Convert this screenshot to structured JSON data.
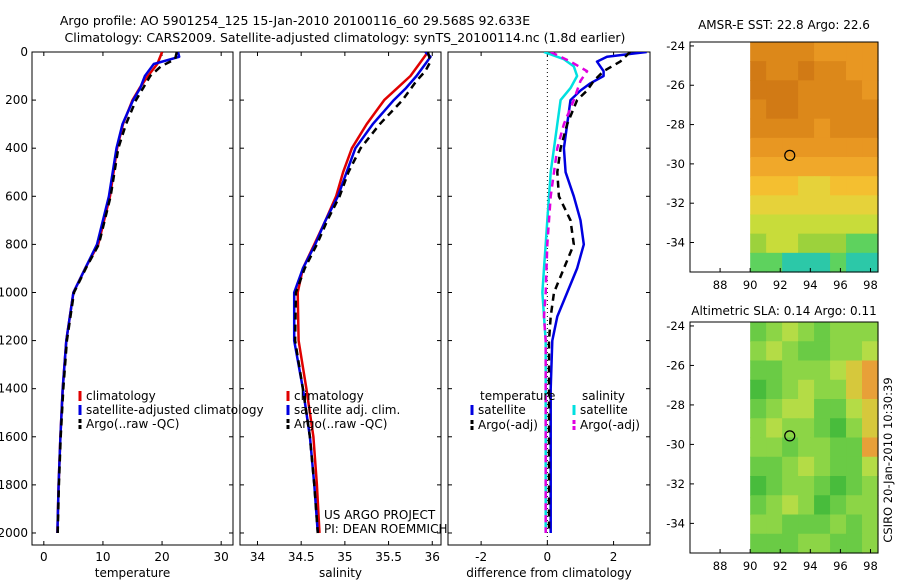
{
  "title": {
    "line1": "Argo profile: AO 5901254_125 15-Jan-2010 20100116_60 29.568S 92.633E",
    "line2": "Climatology: CARS2009. Satellite-adjusted climatology: synTS_20100114.nc (1.8d earlier)"
  },
  "colors": {
    "climatology": "#e00000",
    "satellite": "#0000e0",
    "argo": "#000000",
    "salinity_satellite": "#00e0e0",
    "salinity_argo": "#e000e0"
  },
  "credits": {
    "project": "US ARGO PROJECT",
    "pi": "PI: DEAN ROEMMICH",
    "timestamp": "CSIRO 20-Jan-2010 10:30:39"
  },
  "chart_data": [
    {
      "id": "temperature",
      "type": "line",
      "xlabel": "temperature",
      "xlim": [
        -2,
        32
      ],
      "xticks": [
        "0",
        "10",
        "20",
        "30"
      ],
      "xtick_values": [
        0,
        10,
        20,
        30
      ],
      "ylim": [
        0,
        2050
      ],
      "yticks": [
        "0",
        "200",
        "400",
        "600",
        "800",
        "1000",
        "1200",
        "1400",
        "1600",
        "1800",
        "2000"
      ],
      "ytick_values": [
        0,
        200,
        400,
        600,
        800,
        1000,
        1200,
        1400,
        1600,
        1800,
        2000
      ],
      "legend": [
        "climatology",
        "satellite-adjusted climatology",
        "Argo(..raw -QC)"
      ],
      "series": [
        {
          "name": "climatology",
          "style": "climatology",
          "depth": [
            0,
            50,
            100,
            150,
            200,
            300,
            400,
            600,
            800,
            900,
            1000,
            1200,
            1400,
            1600,
            1800,
            2000
          ],
          "values": [
            20,
            19.2,
            17.6,
            16.2,
            15.0,
            13.4,
            12.4,
            11.2,
            9.2,
            7.0,
            5.0,
            3.8,
            3.2,
            2.8,
            2.5,
            2.3
          ]
        },
        {
          "name": "satellite-adjusted climatology",
          "style": "satellite",
          "depth": [
            0,
            20,
            50,
            100,
            150,
            200,
            300,
            400,
            600,
            800,
            900,
            1000,
            1200,
            1400,
            1600,
            1800,
            2000
          ],
          "values": [
            22.7,
            22.9,
            18.6,
            17.1,
            16.3,
            15.1,
            13.3,
            12.3,
            11.0,
            9.0,
            7.0,
            5.0,
            3.8,
            3.2,
            2.8,
            2.5,
            2.3
          ]
        },
        {
          "name": "Argo(..raw -QC)",
          "style": "argo",
          "depth": [
            0,
            30,
            60,
            100,
            150,
            200,
            300,
            400,
            600,
            800,
            900,
            1000,
            1200,
            1400,
            1600,
            1800,
            2000
          ],
          "values": [
            22.5,
            22.2,
            19.8,
            18.0,
            16.8,
            15.6,
            13.9,
            12.6,
            11.3,
            9.3,
            7.1,
            5.1,
            3.9,
            3.3,
            2.85,
            2.55,
            2.35
          ]
        }
      ]
    },
    {
      "id": "salinity",
      "type": "line",
      "xlabel": "salinity",
      "xlim": [
        33.8,
        36.1
      ],
      "xticks": [
        "34",
        "34.5",
        "35",
        "35.5",
        "36"
      ],
      "xtick_values": [
        34,
        34.5,
        35,
        35.5,
        36
      ],
      "ylim": [
        0,
        2050
      ],
      "legend": [
        "climatology",
        "satellite adj. clim.",
        "Argo(..raw -QC)"
      ],
      "series": [
        {
          "name": "climatology",
          "style": "climatology",
          "depth": [
            0,
            50,
            100,
            150,
            200,
            300,
            400,
            500,
            600,
            700,
            800,
            900,
            1000,
            1200,
            1400,
            1600,
            1800,
            2000
          ],
          "values": [
            35.95,
            35.85,
            35.75,
            35.6,
            35.45,
            35.25,
            35.08,
            34.98,
            34.9,
            34.78,
            34.65,
            34.52,
            34.46,
            34.47,
            34.56,
            34.64,
            34.68,
            34.71
          ]
        },
        {
          "name": "satellite adj. clim.",
          "style": "satellite",
          "depth": [
            0,
            20,
            50,
            100,
            150,
            200,
            300,
            400,
            500,
            600,
            700,
            800,
            900,
            1000,
            1200,
            1400,
            1600,
            1800,
            2000
          ],
          "values": [
            35.92,
            35.98,
            35.92,
            35.82,
            35.7,
            35.56,
            35.32,
            35.12,
            35.02,
            34.92,
            34.78,
            34.66,
            34.52,
            34.42,
            34.42,
            34.52,
            34.6,
            34.65,
            34.69
          ]
        },
        {
          "name": "Argo(..raw -QC)",
          "style": "argo",
          "depth": [
            0,
            40,
            80,
            120,
            200,
            300,
            400,
            500,
            600,
            700,
            800,
            900,
            1000,
            1200,
            1400,
            1600,
            1800,
            2000
          ],
          "values": [
            35.95,
            35.98,
            35.92,
            35.82,
            35.66,
            35.4,
            35.18,
            35.04,
            34.94,
            34.8,
            34.68,
            34.54,
            34.44,
            34.43,
            34.52,
            34.6,
            34.65,
            34.69
          ]
        }
      ],
      "annotations": [
        "US ARGO PROJECT",
        "PI: DEAN ROEMMICH"
      ]
    },
    {
      "id": "difference",
      "type": "line",
      "xlabel": "difference from climatology",
      "xlim": [
        -3,
        3.1
      ],
      "xticks": [
        "-2",
        "0",
        "2"
      ],
      "xtick_values": [
        -2,
        0,
        2
      ],
      "ylim": [
        0,
        2050
      ],
      "legend_groups": [
        {
          "title": "temperature",
          "items": [
            "satellite",
            "Argo(-adj)"
          ]
        },
        {
          "title": "salinity",
          "items": [
            "satellite",
            "Argo(-adj)"
          ]
        }
      ],
      "series": [
        {
          "name": "temperature satellite",
          "style": "satellite",
          "depth": [
            0,
            20,
            40,
            60,
            80,
            100,
            130,
            160,
            200,
            300,
            400,
            500,
            600,
            700,
            800,
            900,
            1000,
            1100,
            1200,
            1400,
            1600,
            1800,
            2000
          ],
          "values": [
            3.0,
            1.8,
            1.5,
            1.6,
            1.7,
            1.7,
            1.3,
            1.0,
            0.7,
            0.6,
            0.5,
            0.55,
            0.8,
            1.0,
            1.1,
            0.9,
            0.6,
            0.3,
            0.15,
            0.1,
            0.1,
            0.1,
            0.1
          ]
        },
        {
          "name": "temperature Argo(-adj)",
          "style": "argo",
          "depth": [
            0,
            40,
            80,
            120,
            160,
            200,
            300,
            400,
            500,
            600,
            700,
            800,
            900,
            1000,
            1100,
            1200,
            1400,
            1600,
            1800,
            2000
          ],
          "values": [
            2.5,
            2.2,
            1.7,
            1.4,
            1.2,
            0.9,
            0.6,
            0.4,
            0.3,
            0.35,
            0.7,
            0.8,
            0.5,
            0.2,
            0.1,
            0.05,
            0.05,
            0.05,
            0.05,
            0.05
          ]
        },
        {
          "name": "salinity satellite",
          "style": "salinity_satellite",
          "depth": [
            0,
            30,
            60,
            100,
            150,
            200,
            300,
            400,
            500,
            600,
            700,
            800,
            900,
            1000,
            1100,
            1200,
            1400,
            1600,
            1800,
            2000
          ],
          "values": [
            -0.1,
            0.5,
            0.8,
            0.9,
            0.7,
            0.4,
            0.3,
            0.2,
            0.1,
            0.05,
            0.0,
            -0.05,
            -0.1,
            -0.15,
            -0.1,
            -0.05,
            -0.05,
            -0.05,
            -0.05,
            -0.05
          ]
        },
        {
          "name": "salinity Argo(-adj)",
          "style": "salinity_argo",
          "depth": [
            0,
            40,
            80,
            120,
            200,
            300,
            400,
            600,
            800,
            1000,
            1100,
            1200,
            1400,
            1600,
            1800,
            2000
          ],
          "values": [
            0.1,
            0.7,
            1.2,
            1.0,
            0.8,
            0.5,
            0.3,
            0.1,
            0.0,
            -0.05,
            -0.1,
            -0.05,
            -0.05,
            -0.05,
            -0.05,
            -0.05
          ]
        }
      ]
    },
    {
      "id": "sst_map",
      "type": "heatmap",
      "title": "AMSR-E SST: 22.8 Argo: 22.6",
      "xlim": [
        86,
        98.5
      ],
      "ylim": [
        -35.5,
        -23.8
      ],
      "xticks": [
        "88",
        "90",
        "92",
        "94",
        "96",
        "98"
      ],
      "xtick_values": [
        88,
        90,
        92,
        94,
        96,
        98
      ],
      "yticks": [
        "-24",
        "-26",
        "-28",
        "-30",
        "-32",
        "-34"
      ],
      "ytick_values": [
        -24,
        -26,
        -28,
        -30,
        -32,
        -34
      ],
      "data_extent_lon": [
        90,
        98.5
      ],
      "marker": {
        "lon": 92.633,
        "lat": -29.568
      },
      "cols": 8,
      "grid": [
        [
          2,
          2,
          2,
          2,
          3,
          3,
          3,
          3
        ],
        [
          1,
          2,
          2,
          1,
          2,
          2,
          3,
          3
        ],
        [
          1,
          1,
          1,
          2,
          2,
          2,
          2,
          3
        ],
        [
          2,
          1,
          1,
          2,
          2,
          2,
          2,
          2
        ],
        [
          2,
          2,
          2,
          2,
          3,
          2,
          2,
          2
        ],
        [
          3,
          3,
          3,
          3,
          3,
          3,
          3,
          3
        ],
        [
          4,
          4,
          4,
          4,
          4,
          4,
          4,
          4
        ],
        [
          5,
          5,
          5,
          6,
          6,
          5,
          5,
          5
        ],
        [
          6,
          6,
          6,
          6,
          6,
          6,
          6,
          6
        ],
        [
          7,
          7,
          7,
          7,
          7,
          7,
          7,
          7
        ],
        [
          8,
          7,
          7,
          8,
          8,
          8,
          9,
          9
        ],
        [
          9,
          9,
          10,
          10,
          10,
          9,
          10,
          10
        ]
      ],
      "palette": [
        "#c46c14",
        "#d17a15",
        "#dc881a",
        "#e89722",
        "#f0a82a",
        "#f4bf30",
        "#e6d23a",
        "#c8dc3a",
        "#9cd23c",
        "#5ed25e",
        "#2cc8a8"
      ]
    },
    {
      "id": "sla_map",
      "type": "heatmap",
      "title": "Altimetric SLA: 0.14 Argo: 0.11",
      "xlim": [
        86,
        98.5
      ],
      "ylim": [
        -35.5,
        -23.8
      ],
      "xticks": [
        "88",
        "90",
        "92",
        "94",
        "96",
        "98"
      ],
      "xtick_values": [
        88,
        90,
        92,
        94,
        96,
        98
      ],
      "yticks": [
        "-24",
        "-26",
        "-28",
        "-30",
        "-32",
        "-34"
      ],
      "ytick_values": [
        -24,
        -26,
        -28,
        -30,
        -32,
        -34
      ],
      "data_extent_lon": [
        90,
        98.5
      ],
      "marker": {
        "lon": 92.633,
        "lat": -29.568
      },
      "cols": 8,
      "grid": [
        [
          3,
          4,
          5,
          4,
          3,
          4,
          4,
          4
        ],
        [
          4,
          5,
          4,
          3,
          3,
          4,
          4,
          5
        ],
        [
          3,
          3,
          4,
          4,
          4,
          5,
          6,
          7
        ],
        [
          2,
          3,
          4,
          5,
          4,
          4,
          6,
          7
        ],
        [
          3,
          4,
          5,
          5,
          3,
          3,
          5,
          6
        ],
        [
          4,
          5,
          4,
          4,
          3,
          2,
          4,
          6
        ],
        [
          4,
          4,
          3,
          4,
          4,
          3,
          3,
          7
        ],
        [
          3,
          3,
          4,
          5,
          4,
          3,
          3,
          5
        ],
        [
          2,
          3,
          4,
          4,
          3,
          2,
          3,
          4
        ],
        [
          3,
          4,
          5,
          4,
          2,
          3,
          4,
          4
        ],
        [
          4,
          4,
          3,
          3,
          3,
          4,
          3,
          4
        ],
        [
          3,
          3,
          3,
          4,
          4,
          3,
          3,
          4
        ]
      ],
      "palette": [
        "#1c9c3a",
        "#2cac3a",
        "#48bc3c",
        "#6acb45",
        "#8cd546",
        "#b4dc46",
        "#d6c83c",
        "#e8a038"
      ]
    }
  ]
}
